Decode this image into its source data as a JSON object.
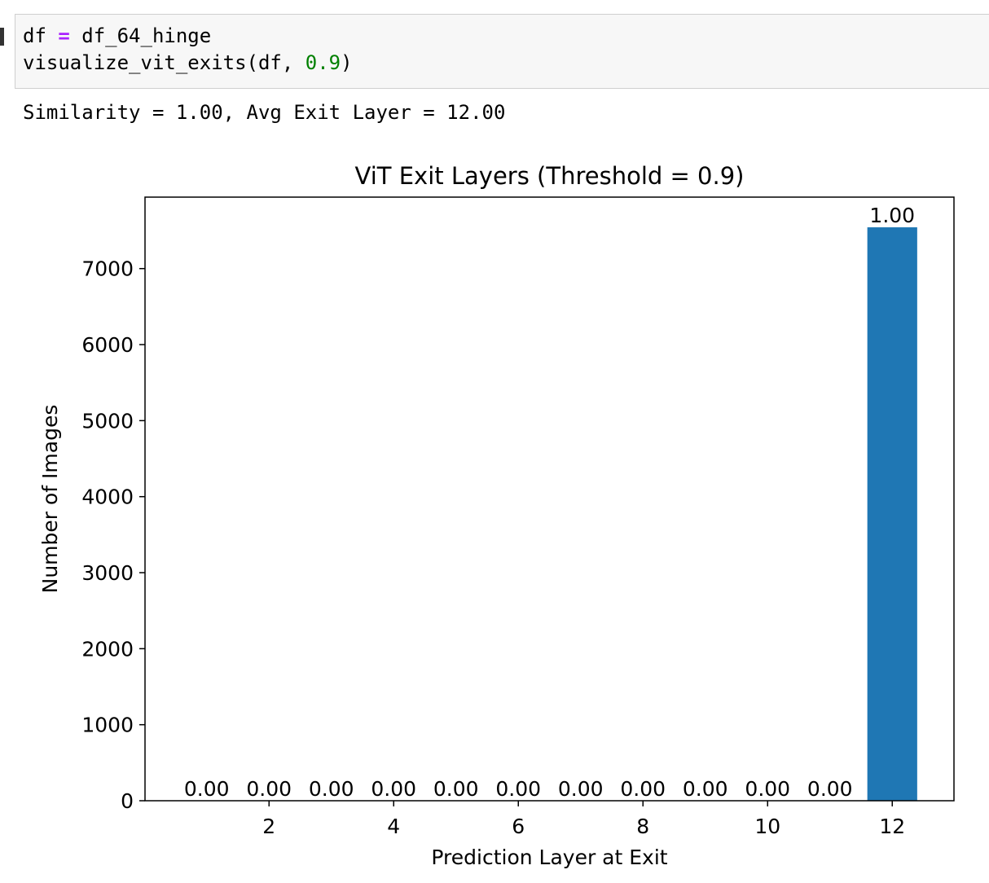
{
  "code_cell": {
    "lines": [
      [
        "df ",
        "=",
        " df_64_hinge"
      ],
      [
        "visualize_vit_exits(df, ",
        "0.9",
        ")"
      ]
    ]
  },
  "output": {
    "text": "Similarity = 1.00, Avg Exit Layer = 12.00"
  },
  "chart_data": {
    "type": "bar",
    "title": "ViT Exit Layers (Threshold = 0.9)",
    "x_label": "Prediction Layer at Exit",
    "y_label": "Number of Images",
    "x": [
      1,
      2,
      3,
      4,
      5,
      6,
      7,
      8,
      9,
      10,
      11,
      12
    ],
    "series": [
      {
        "color": "#1f77b4",
        "values": [
          0,
          0,
          0,
          0,
          0,
          0,
          0,
          0,
          0,
          0,
          0,
          7543
        ]
      }
    ],
    "annotations": {
      "values": [
        0,
        0,
        0,
        0,
        0,
        0,
        0,
        0,
        0,
        0,
        0,
        1
      ],
      "value_labels": [
        "0.00",
        "0.00",
        "0.00",
        "0.00",
        "0.00",
        "0.00",
        "0.00",
        "0.00",
        "0.00",
        "0.00",
        "0.00",
        "1.00"
      ]
    },
    "bar_width": 0.8,
    "xlim": [
      0.01,
      12.99
    ],
    "xticks": [
      2,
      4,
      6,
      8,
      10,
      12
    ],
    "ylim": [
      0,
      7940
    ],
    "yticks": [
      0,
      1000,
      2000,
      3000,
      4000,
      5000,
      6000,
      7000
    ]
  }
}
